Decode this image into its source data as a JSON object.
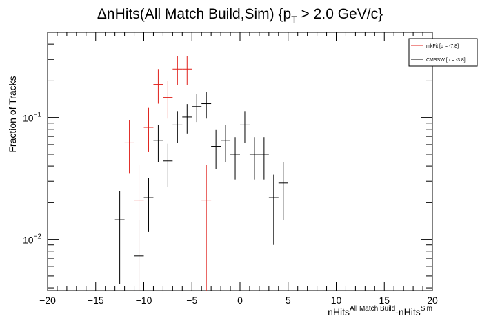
{
  "chart_data": {
    "type": "scatter",
    "title_main": "ΔnHits(All Match Build,Sim) {p",
    "title_sub": "T",
    "title_tail": " > 2.0 GeV/c}",
    "ylabel": "Fraction of Tracks",
    "xlabel_main": "nHits",
    "xlabel_sup1": "All Match Build",
    "xlabel_mid": "-nHits",
    "xlabel_sup2": "Sim",
    "x_ticks": [
      "−20",
      "−15",
      "−10",
      "−5",
      "0",
      "5",
      "10",
      "15",
      "20"
    ],
    "y_tick_labels": [
      {
        "value": 0.1,
        "base": "10",
        "exp": "−1"
      },
      {
        "value": 0.01,
        "base": "10",
        "exp": "−2"
      }
    ],
    "xlim": [
      -20,
      20
    ],
    "ylim": [
      0.0038,
      0.5
    ],
    "yscale": "log",
    "grid": false,
    "legend_placement": "top-right",
    "series": [
      {
        "name": "mkFit  [μ = -7.8]",
        "color": "#e0201b",
        "points": [
          {
            "x": -11.5,
            "y": 0.062,
            "ylo": 0.035,
            "yhi": 0.095
          },
          {
            "x": -10.5,
            "y": 0.021,
            "ylo": 0.0038,
            "yhi": 0.041
          },
          {
            "x": -9.5,
            "y": 0.083,
            "ylo": 0.052,
            "yhi": 0.12
          },
          {
            "x": -8.5,
            "y": 0.187,
            "ylo": 0.13,
            "yhi": 0.25
          },
          {
            "x": -7.5,
            "y": 0.146,
            "ylo": 0.098,
            "yhi": 0.2
          },
          {
            "x": -6.5,
            "y": 0.25,
            "ylo": 0.185,
            "yhi": 0.32
          },
          {
            "x": -5.5,
            "y": 0.25,
            "ylo": 0.185,
            "yhi": 0.32
          },
          {
            "x": -3.5,
            "y": 0.021,
            "ylo": 0.0038,
            "yhi": 0.041
          }
        ]
      },
      {
        "name": "CMSSW  [μ = -3.8]",
        "color": "#000000",
        "points": [
          {
            "x": -12.5,
            "y": 0.0145,
            "ylo": 0.0043,
            "yhi": 0.025
          },
          {
            "x": -10.5,
            "y": 0.0073,
            "ylo": 0.0038,
            "yhi": 0.0145
          },
          {
            "x": -9.5,
            "y": 0.022,
            "ylo": 0.0115,
            "yhi": 0.032
          },
          {
            "x": -8.5,
            "y": 0.065,
            "ylo": 0.043,
            "yhi": 0.087
          },
          {
            "x": -7.5,
            "y": 0.044,
            "ylo": 0.027,
            "yhi": 0.061
          },
          {
            "x": -6.5,
            "y": 0.087,
            "ylo": 0.062,
            "yhi": 0.113
          },
          {
            "x": -5.5,
            "y": 0.101,
            "ylo": 0.074,
            "yhi": 0.129
          },
          {
            "x": -4.5,
            "y": 0.123,
            "ylo": 0.092,
            "yhi": 0.155
          },
          {
            "x": -3.5,
            "y": 0.13,
            "ylo": 0.098,
            "yhi": 0.163
          },
          {
            "x": -2.5,
            "y": 0.058,
            "ylo": 0.038,
            "yhi": 0.079
          },
          {
            "x": -1.5,
            "y": 0.065,
            "ylo": 0.043,
            "yhi": 0.087
          },
          {
            "x": -0.5,
            "y": 0.05,
            "ylo": 0.031,
            "yhi": 0.069
          },
          {
            "x": 0.5,
            "y": 0.087,
            "ylo": 0.062,
            "yhi": 0.113
          },
          {
            "x": 1.5,
            "y": 0.05,
            "ylo": 0.031,
            "yhi": 0.069
          },
          {
            "x": 2.5,
            "y": 0.05,
            "ylo": 0.031,
            "yhi": 0.069
          },
          {
            "x": 3.5,
            "y": 0.022,
            "ylo": 0.009,
            "yhi": 0.034
          },
          {
            "x": 4.5,
            "y": 0.029,
            "ylo": 0.0145,
            "yhi": 0.043
          }
        ]
      }
    ]
  }
}
